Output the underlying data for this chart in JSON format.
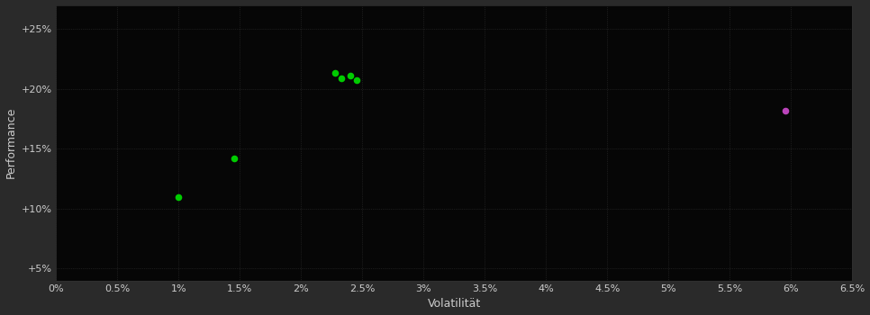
{
  "background_color": "#2a2a2a",
  "plot_bg_color": "#060606",
  "grid_color": "#303030",
  "grid_style": ":",
  "xlabel": "Volatilität",
  "ylabel": "Performance",
  "xlabel_color": "#cccccc",
  "ylabel_color": "#cccccc",
  "tick_color": "#cccccc",
  "xlim": [
    0.0,
    0.065
  ],
  "ylim": [
    0.04,
    0.27
  ],
  "xticks": [
    0.0,
    0.005,
    0.01,
    0.015,
    0.02,
    0.025,
    0.03,
    0.035,
    0.04,
    0.045,
    0.05,
    0.055,
    0.06,
    0.065
  ],
  "xtick_labels": [
    "0%",
    "0.5%",
    "1%",
    "1.5%",
    "2%",
    "2.5%",
    "3%",
    "3.5%",
    "4%",
    "4.5%",
    "5%",
    "5.5%",
    "6%",
    "6.5%"
  ],
  "yticks": [
    0.05,
    0.1,
    0.15,
    0.2,
    0.25
  ],
  "ytick_labels": [
    "+5%",
    "+10%",
    "+15%",
    "+20%",
    "+25%"
  ],
  "green_points": [
    [
      0.01,
      0.11
    ],
    [
      0.0145,
      0.142
    ],
    [
      0.0228,
      0.213
    ],
    [
      0.0233,
      0.209
    ],
    [
      0.024,
      0.211
    ],
    [
      0.0245,
      0.207
    ]
  ],
  "magenta_points": [
    [
      0.0595,
      0.182
    ]
  ],
  "green_color": "#00cc00",
  "magenta_color": "#bb44bb",
  "marker_size": 30,
  "grid_linewidth": 0.5,
  "tick_fontsize": 8,
  "label_fontsize": 9
}
